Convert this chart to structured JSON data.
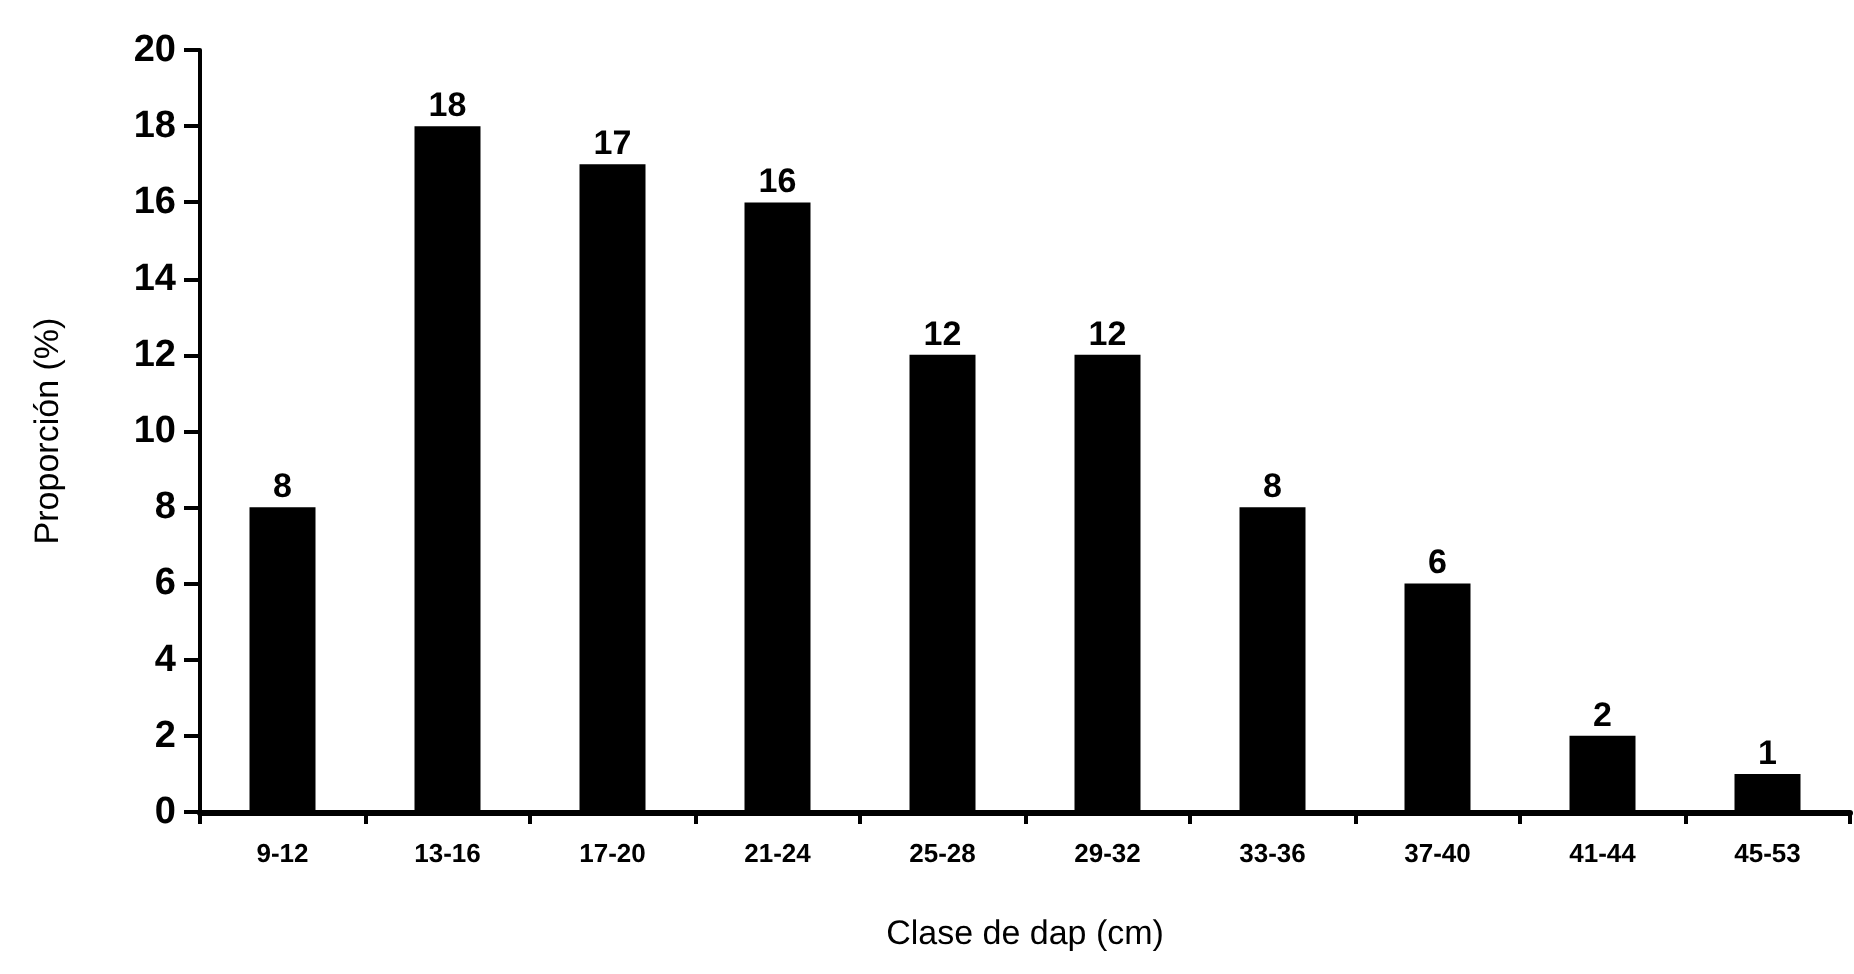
{
  "chart_data": {
    "type": "bar",
    "xlabel": "Clase de dap (cm)",
    "ylabel": "Proporción (%)",
    "categories": [
      "9-12",
      "13-16",
      "17-20",
      "21-24",
      "25-28",
      "29-32",
      "33-36",
      "37-40",
      "41-44",
      "45-53"
    ],
    "values": [
      8,
      18,
      17,
      16,
      12,
      12,
      8,
      6,
      2,
      1
    ],
    "color": "#000000",
    "ylim": [
      0,
      20
    ],
    "yticks": [
      0,
      2,
      4,
      6,
      8,
      10,
      12,
      14,
      16,
      18,
      20
    ],
    "data_labels": true
  }
}
